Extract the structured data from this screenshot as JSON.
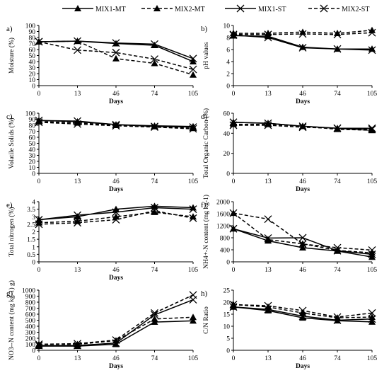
{
  "legend": [
    {
      "name": "MIX1-MT",
      "marker": "triangle",
      "dash": "solid"
    },
    {
      "name": "MIX2-MT",
      "marker": "triangle",
      "dash": "dashed"
    },
    {
      "name": "MIX1-ST",
      "marker": "cross",
      "dash": "solid"
    },
    {
      "name": "MIX2-ST",
      "marker": "cross",
      "dash": "dashed"
    }
  ],
  "chart_data": [
    {
      "type": "line",
      "panel": "a)",
      "xlabel": "Days",
      "ylabel": "Moisture (%)",
      "categories": [
        "0",
        "13",
        "46",
        "74",
        "105"
      ],
      "ylim": [
        0,
        100
      ],
      "yticks": [
        "0",
        "10",
        "20",
        "30",
        "40",
        "50",
        "60",
        "70",
        "80",
        "90",
        "100"
      ],
      "series": [
        {
          "name": "MIX1-MT",
          "values": [
            73,
            74,
            70,
            67,
            40
          ]
        },
        {
          "name": "MIX2-MT",
          "values": [
            73,
            74,
            45,
            37,
            18
          ]
        },
        {
          "name": "MIX1-ST",
          "values": [
            73,
            74,
            71,
            69,
            45
          ]
        },
        {
          "name": "MIX2-ST",
          "values": [
            73,
            59,
            55,
            44,
            27
          ]
        }
      ]
    },
    {
      "type": "line",
      "panel": "b)",
      "xlabel": "Days",
      "ylabel": "pH values",
      "categories": [
        "0",
        "13",
        "46",
        "74",
        "105"
      ],
      "ylim": [
        0,
        10
      ],
      "yticks": [
        "0",
        "2",
        "4",
        "6",
        "8",
        "10"
      ],
      "series": [
        {
          "name": "MIX1-MT",
          "values": [
            8.3,
            8.2,
            6.4,
            6.1,
            6.1
          ]
        },
        {
          "name": "MIX2-MT",
          "values": [
            8.7,
            8.7,
            8.9,
            8.7,
            9.2
          ]
        },
        {
          "name": "MIX1-ST",
          "values": [
            8.4,
            8.0,
            6.3,
            6.1,
            5.9
          ]
        },
        {
          "name": "MIX2-ST",
          "values": [
            8.5,
            8.5,
            8.6,
            8.5,
            8.8
          ]
        }
      ]
    },
    {
      "type": "line",
      "panel": "c)",
      "xlabel": "Days",
      "ylabel": "Volatile Solids (%)",
      "categories": [
        "0",
        "13",
        "46",
        "74",
        "105"
      ],
      "ylim": [
        0,
        100
      ],
      "yticks": [
        "0",
        "10",
        "20",
        "30",
        "40",
        "50",
        "60",
        "70",
        "80",
        "90",
        "100"
      ],
      "series": [
        {
          "name": "MIX1-MT",
          "values": [
            88,
            86,
            81,
            79,
            78
          ]
        },
        {
          "name": "MIX2-MT",
          "values": [
            86,
            84,
            80,
            78,
            75
          ]
        },
        {
          "name": "MIX1-ST",
          "values": [
            88,
            87,
            81,
            78,
            77
          ]
        },
        {
          "name": "MIX2-ST",
          "values": [
            85,
            82,
            79,
            77,
            74
          ]
        }
      ]
    },
    {
      "type": "line",
      "panel": "d)",
      "xlabel": "Days",
      "ylabel": "Total Organic Carbon (%)",
      "categories": [
        "0",
        "13",
        "46",
        "74",
        "105"
      ],
      "ylim": [
        0,
        60
      ],
      "yticks": [
        "0",
        "20",
        "40",
        "60"
      ],
      "series": [
        {
          "name": "MIX1-MT",
          "values": [
            51,
            50,
            47,
            45,
            43
          ]
        },
        {
          "name": "MIX2-MT",
          "values": [
            49,
            49,
            47,
            44,
            43
          ]
        },
        {
          "name": "MIX1-ST",
          "values": [
            51,
            50,
            47,
            45,
            45
          ]
        },
        {
          "name": "MIX2-ST",
          "values": [
            48,
            48,
            46,
            45,
            44
          ]
        }
      ]
    },
    {
      "type": "line",
      "panel": "e)",
      "xlabel": "Days",
      "ylabel": "Total nitrogen (%)",
      "categories": [
        "0",
        "13",
        "46",
        "74",
        "105"
      ],
      "ylim": [
        0,
        4
      ],
      "yticks": [
        "0",
        "0.5",
        "1",
        "1.5",
        "2",
        "2.5",
        "3",
        "3.5",
        "4"
      ],
      "series": [
        {
          "name": "MIX1-MT",
          "values": [
            2.8,
            3.0,
            3.5,
            3.7,
            3.6
          ]
        },
        {
          "name": "MIX2-MT",
          "values": [
            2.6,
            2.7,
            3.0,
            3.3,
            3.0
          ]
        },
        {
          "name": "MIX1-ST",
          "values": [
            2.8,
            3.1,
            3.3,
            3.6,
            3.5
          ]
        },
        {
          "name": "MIX2-ST",
          "values": [
            2.5,
            2.6,
            2.8,
            3.4,
            2.9
          ]
        }
      ]
    },
    {
      "type": "line",
      "panel": "f)",
      "xlabel": "",
      "ylabel": "NH4+-N content (mg kg-1)",
      "categories": [
        "0",
        "13",
        "46",
        "74",
        "105"
      ],
      "ylim": [
        0,
        2000
      ],
      "yticks": [
        "0",
        "400",
        "800",
        "1200",
        "1600",
        "2000"
      ],
      "series": [
        {
          "name": "MIX1-MT",
          "values": [
            1100,
            700,
            470,
            360,
            160
          ]
        },
        {
          "name": "MIX2-MT",
          "values": [
            1620,
            740,
            600,
            380,
            300
          ]
        },
        {
          "name": "MIX1-ST",
          "values": [
            1100,
            790,
            800,
            370,
            250
          ]
        },
        {
          "name": "MIX2-ST",
          "values": [
            1620,
            1420,
            590,
            470,
            390
          ]
        }
      ]
    },
    {
      "type": "line",
      "panel": "g)",
      "xlabel": "Days",
      "ylabel": "NO3--N content (mg kg-1) g)",
      "categories": [
        "0",
        "13",
        "46",
        "74",
        "105"
      ],
      "ylim": [
        0,
        1000
      ],
      "yticks": [
        "0",
        "100",
        "200",
        "300",
        "400",
        "500",
        "600",
        "700",
        "800",
        "900",
        "1000"
      ],
      "series": [
        {
          "name": "MIX1-MT",
          "values": [
            70,
            70,
            100,
            470,
            490
          ]
        },
        {
          "name": "MIX2-MT",
          "values": [
            100,
            100,
            160,
            520,
            550
          ]
        },
        {
          "name": "MIX1-ST",
          "values": [
            80,
            80,
            120,
            590,
            840
          ]
        },
        {
          "name": "MIX2-ST",
          "values": [
            100,
            110,
            170,
            620,
            920
          ]
        }
      ]
    },
    {
      "type": "line",
      "panel": "h)",
      "xlabel": "Days",
      "ylabel": "C/N Ratio",
      "categories": [
        "0",
        "13",
        "46",
        "74",
        "105"
      ],
      "ylim": [
        0,
        25
      ],
      "yticks": [
        "0",
        "5",
        "10",
        "15",
        "20",
        "25"
      ],
      "series": [
        {
          "name": "MIX1-MT",
          "values": [
            18,
            16.5,
            13.5,
            12.3,
            11.8
          ]
        },
        {
          "name": "MIX2-MT",
          "values": [
            19,
            18,
            15.5,
            13.5,
            13.8
          ]
        },
        {
          "name": "MIX1-ST",
          "values": [
            18,
            17,
            14.2,
            12.5,
            13
          ]
        },
        {
          "name": "MIX2-ST",
          "values": [
            19,
            18.5,
            16.5,
            13.8,
            15.5
          ]
        }
      ]
    }
  ]
}
